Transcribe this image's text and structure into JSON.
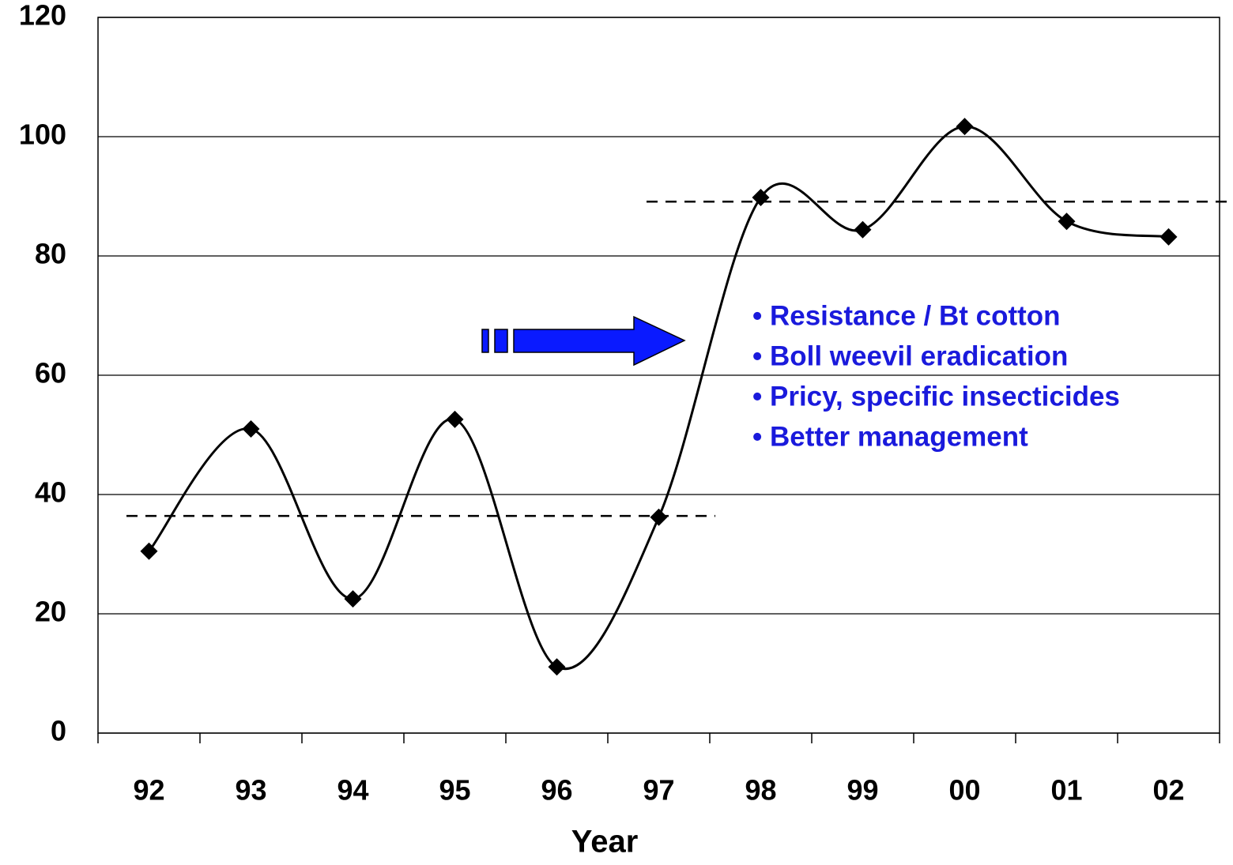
{
  "chart_data": {
    "type": "line",
    "x_label": "Year",
    "categories": [
      "92",
      "93",
      "94",
      "95",
      "96",
      "97",
      "98",
      "99",
      "00",
      "01",
      "02"
    ],
    "series": [
      {
        "color": "#000000",
        "values": [
          30.5,
          51,
          22.5,
          52.6,
          11.1,
          36.2,
          89.8,
          84.4,
          101.7,
          85.8,
          83.2
        ]
      }
    ],
    "ylim": [
      0,
      120
    ],
    "yticks": [
      0,
      20,
      40,
      60,
      80,
      100,
      120
    ],
    "grid": true,
    "reference_lines": [
      {
        "value": 36.4
      },
      {
        "value": 89.1
      }
    ],
    "annotations": [
      "• Resistance / Bt cotton",
      "• Boll weevil eradication",
      "• Pricy, specific insecticides",
      "• Better management"
    ]
  }
}
